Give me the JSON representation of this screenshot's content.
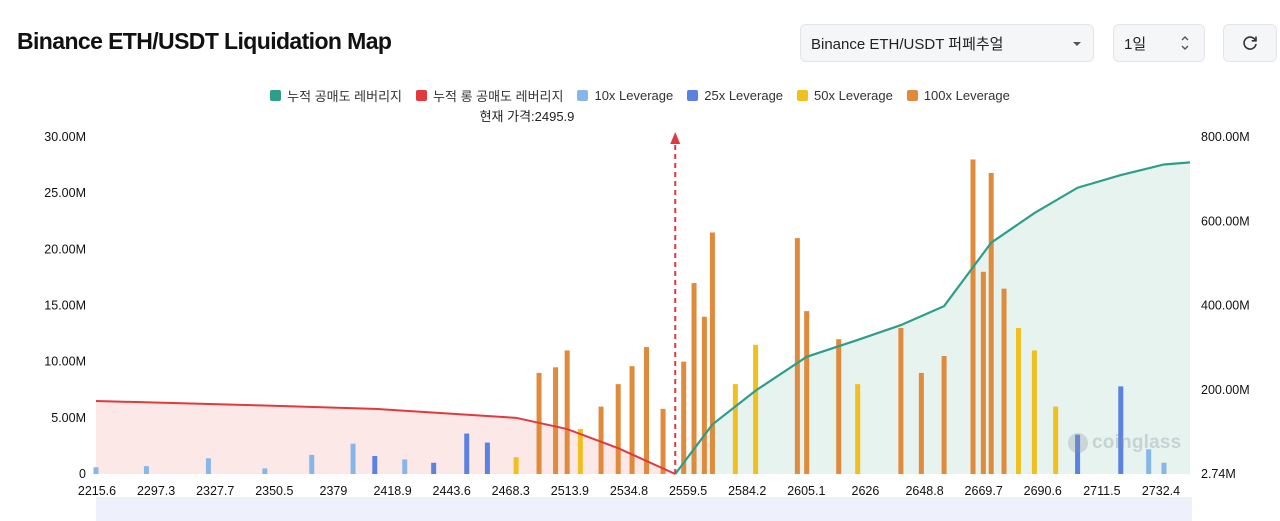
{
  "header": {
    "title": "Binance ETH/USDT Liquidation Map",
    "market_select": "Binance ETH/USDT 퍼페추얼",
    "range_select": "1일",
    "refresh_icon": "refresh-icon"
  },
  "legend": [
    {
      "label": "누적 공매도 레버리지",
      "color": "#2e9e8a"
    },
    {
      "label": "누적 롱 공매도 레버리지",
      "color": "#e03a3e"
    },
    {
      "label": "10x Leverage",
      "color": "#87b6e8"
    },
    {
      "label": "25x Leverage",
      "color": "#5b82e0"
    },
    {
      "label": "50x Leverage",
      "color": "#f0c020"
    },
    {
      "label": "100x Leverage",
      "color": "#e08a3c"
    }
  ],
  "current_price_label": "현재 가격:2495.9",
  "watermark": "coinglass",
  "chart_data": {
    "type": "bar",
    "current_price": 2495.9,
    "x_tick_labels": [
      "2215.6",
      "2297.3",
      "2327.7",
      "2350.5",
      "2379",
      "2418.9",
      "2443.6",
      "2468.3",
      "2513.9",
      "2534.8",
      "2559.5",
      "2584.2",
      "2605.1",
      "2626",
      "2648.8",
      "2669.7",
      "2690.6",
      "2711.5",
      "2732.4"
    ],
    "y_left": {
      "ticks": [
        "0",
        "5.00M",
        "10.00M",
        "15.00M",
        "20.00M",
        "25.00M",
        "30.00M"
      ],
      "range": [
        0,
        30000000
      ]
    },
    "y_right": {
      "ticks": [
        "2.74M",
        "200.00M",
        "400.00M",
        "600.00M",
        "800.00M"
      ],
      "range": [
        2740000,
        800000000
      ]
    },
    "leverage_bars": [
      {
        "series": "10x Leverage",
        "x": 2215.6,
        "value": 600000
      },
      {
        "series": "10x Leverage",
        "x": 2240.0,
        "value": 700000
      },
      {
        "series": "10x Leverage",
        "x": 2270.0,
        "value": 1400000
      },
      {
        "series": "10x Leverage",
        "x": 2297.3,
        "value": 500000
      },
      {
        "series": "10x Leverage",
        "x": 2320.0,
        "value": 1700000
      },
      {
        "series": "10x Leverage",
        "x": 2340.0,
        "value": 2700000
      },
      {
        "series": "25x Leverage",
        "x": 2350.5,
        "value": 1600000
      },
      {
        "series": "10x Leverage",
        "x": 2365.0,
        "value": 1300000
      },
      {
        "series": "25x Leverage",
        "x": 2379.0,
        "value": 1000000
      },
      {
        "series": "25x Leverage",
        "x": 2395.0,
        "value": 3600000
      },
      {
        "series": "25x Leverage",
        "x": 2405.0,
        "value": 2800000
      },
      {
        "series": "50x Leverage",
        "x": 2418.9,
        "value": 1500000
      },
      {
        "series": "100x Leverage",
        "x": 2430.0,
        "value": 9000000
      },
      {
        "series": "100x Leverage",
        "x": 2438.0,
        "value": 9500000
      },
      {
        "series": "100x Leverage",
        "x": 2443.6,
        "value": 11000000
      },
      {
        "series": "50x Leverage",
        "x": 2450.0,
        "value": 4000000
      },
      {
        "series": "100x Leverage",
        "x": 2460.0,
        "value": 6000000
      },
      {
        "series": "100x Leverage",
        "x": 2468.3,
        "value": 8000000
      },
      {
        "series": "100x Leverage",
        "x": 2475.0,
        "value": 9600000
      },
      {
        "series": "100x Leverage",
        "x": 2482.0,
        "value": 11300000
      },
      {
        "series": "100x Leverage",
        "x": 2490.0,
        "value": 5800000
      },
      {
        "series": "100x Leverage",
        "x": 2500.0,
        "value": 10000000
      },
      {
        "series": "100x Leverage",
        "x": 2505.0,
        "value": 17000000
      },
      {
        "series": "100x Leverage",
        "x": 2510.0,
        "value": 14000000
      },
      {
        "series": "100x Leverage",
        "x": 2513.9,
        "value": 21500000
      },
      {
        "series": "50x Leverage",
        "x": 2525.0,
        "value": 8000000
      },
      {
        "series": "50x Leverage",
        "x": 2534.8,
        "value": 11500000
      },
      {
        "series": "100x Leverage",
        "x": 2555.0,
        "value": 21000000
      },
      {
        "series": "100x Leverage",
        "x": 2559.5,
        "value": 14500000
      },
      {
        "series": "100x Leverage",
        "x": 2575.0,
        "value": 12000000
      },
      {
        "series": "50x Leverage",
        "x": 2584.2,
        "value": 8000000
      },
      {
        "series": "100x Leverage",
        "x": 2605.1,
        "value": 13000000
      },
      {
        "series": "100x Leverage",
        "x": 2615.0,
        "value": 9000000
      },
      {
        "series": "100x Leverage",
        "x": 2626.0,
        "value": 10500000
      },
      {
        "series": "100x Leverage",
        "x": 2640.0,
        "value": 28000000
      },
      {
        "series": "100x Leverage",
        "x": 2645.0,
        "value": 18000000
      },
      {
        "series": "100x Leverage",
        "x": 2648.8,
        "value": 26800000
      },
      {
        "series": "100x Leverage",
        "x": 2655.0,
        "value": 16500000
      },
      {
        "series": "50x Leverage",
        "x": 2662.0,
        "value": 13000000
      },
      {
        "series": "50x Leverage",
        "x": 2669.7,
        "value": 11000000
      },
      {
        "series": "50x Leverage",
        "x": 2680.0,
        "value": 6000000
      },
      {
        "series": "25x Leverage",
        "x": 2690.6,
        "value": 3500000
      },
      {
        "series": "25x Leverage",
        "x": 2711.5,
        "value": 7800000
      },
      {
        "series": "10x Leverage",
        "x": 2725.0,
        "value": 2200000
      },
      {
        "series": "10x Leverage",
        "x": 2732.4,
        "value": 1000000
      }
    ],
    "cumulative_short": {
      "name": "누적 공매도 레버리지",
      "x": [
        2495.9,
        2513.9,
        2534.8,
        2559.5,
        2584.2,
        2605.1,
        2626,
        2648.8,
        2669.7,
        2690.6,
        2711.5,
        2732.4
      ],
      "values": [
        2740000,
        120000000,
        200000000,
        280000000,
        320000000,
        355000000,
        400000000,
        550000000,
        620000000,
        680000000,
        710000000,
        735000000
      ]
    },
    "cumulative_long": {
      "name": "누적 롱 공매도 레버리지",
      "x": [
        2215.6,
        2297.3,
        2350.5,
        2418.9,
        2443.6,
        2468.3,
        2495.9
      ],
      "values": [
        6500000,
        6100000,
        5800000,
        5000000,
        4000000,
        2300000,
        0
      ]
    }
  }
}
